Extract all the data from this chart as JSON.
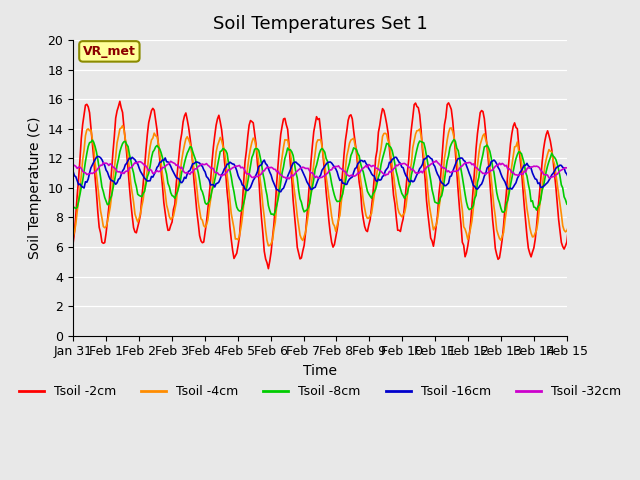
{
  "title": "Soil Temperatures Set 1",
  "xlabel": "Time",
  "ylabel": "Soil Temperature (C)",
  "ylim": [
    0,
    20
  ],
  "yticks": [
    0,
    2,
    4,
    6,
    8,
    10,
    12,
    14,
    16,
    18,
    20
  ],
  "x_tick_pos": [
    0,
    1,
    2,
    3,
    4,
    5,
    6,
    7,
    8,
    9,
    10,
    11,
    12,
    13,
    14,
    15
  ],
  "x_labels": [
    "Jan 31",
    "Feb 1",
    "Feb 2",
    "Feb 3",
    "Feb 4",
    "Feb 5",
    "Feb 6",
    "Feb 7",
    "Feb 8",
    "Feb 9",
    "Feb 10",
    "Feb 11",
    "Feb 12",
    "Feb 13",
    "Feb 14",
    "Feb 15"
  ],
  "series_colors": [
    "#ff0000",
    "#ff8c00",
    "#00cc00",
    "#0000cc",
    "#cc00cc"
  ],
  "series_labels": [
    "Tsoil -2cm",
    "Tsoil -4cm",
    "Tsoil -8cm",
    "Tsoil -16cm",
    "Tsoil -32cm"
  ],
  "background_color": "#e8e8e8",
  "annotation_text": "VR_met",
  "annotation_box_color": "#ffff99",
  "annotation_border_color": "#8b8b00",
  "n_points": 384,
  "title_fontsize": 13,
  "axis_label_fontsize": 10,
  "tick_fontsize": 9,
  "legend_fontsize": 9
}
